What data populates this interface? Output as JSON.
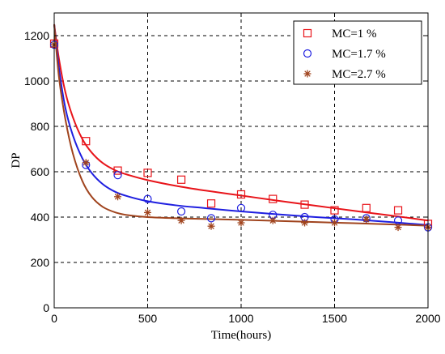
{
  "chart_data": {
    "type": "scatter",
    "xlabel": "Time(hours)",
    "ylabel": "DP",
    "xlim": [
      0,
      2000
    ],
    "ylim": [
      0,
      1300
    ],
    "xticks": [
      0,
      500,
      1000,
      1500,
      2000
    ],
    "yticks": [
      0,
      200,
      400,
      600,
      800,
      1000,
      1200
    ],
    "grid": true,
    "grid_style": "dashed",
    "legend_position": "top-right",
    "series": [
      {
        "name": "MC=1 %",
        "color": "#e8141a",
        "marker": "square",
        "points": [
          [
            0,
            1165
          ],
          [
            170,
            735
          ],
          [
            340,
            605
          ],
          [
            500,
            595
          ],
          [
            680,
            565
          ],
          [
            840,
            460
          ],
          [
            1000,
            500
          ],
          [
            1170,
            480
          ],
          [
            1340,
            455
          ],
          [
            1500,
            430
          ],
          [
            1670,
            440
          ],
          [
            1840,
            430
          ],
          [
            2000,
            370
          ]
        ],
        "fit": [
          [
            0,
            1250
          ],
          [
            25,
            1100
          ],
          [
            60,
            950
          ],
          [
            100,
            840
          ],
          [
            150,
            745
          ],
          [
            200,
            685
          ],
          [
            260,
            638
          ],
          [
            330,
            605
          ],
          [
            400,
            585
          ],
          [
            500,
            563
          ],
          [
            650,
            538
          ],
          [
            800,
            518
          ],
          [
            1000,
            495
          ],
          [
            1200,
            472
          ],
          [
            1400,
            450
          ],
          [
            1600,
            428
          ],
          [
            1800,
            407
          ],
          [
            2000,
            385
          ]
        ]
      },
      {
        "name": "MC=1.7 %",
        "color": "#1f1fe0",
        "marker": "circle",
        "points": [
          [
            0,
            1160
          ],
          [
            170,
            630
          ],
          [
            340,
            585
          ],
          [
            500,
            480
          ],
          [
            680,
            425
          ],
          [
            840,
            395
          ],
          [
            1000,
            440
          ],
          [
            1170,
            410
          ],
          [
            1340,
            400
          ],
          [
            1500,
            390
          ],
          [
            1670,
            395
          ],
          [
            1840,
            385
          ],
          [
            2000,
            355
          ]
        ],
        "fit": [
          [
            0,
            1250
          ],
          [
            25,
            1060
          ],
          [
            60,
            880
          ],
          [
            100,
            760
          ],
          [
            150,
            660
          ],
          [
            200,
            595
          ],
          [
            260,
            545
          ],
          [
            330,
            510
          ],
          [
            400,
            490
          ],
          [
            500,
            470
          ],
          [
            650,
            452
          ],
          [
            800,
            440
          ],
          [
            1000,
            425
          ],
          [
            1200,
            412
          ],
          [
            1400,
            400
          ],
          [
            1600,
            390
          ],
          [
            1800,
            378
          ],
          [
            2000,
            365
          ]
        ]
      },
      {
        "name": "MC=2.7 %",
        "color": "#a0441e",
        "marker": "star",
        "points": [
          [
            0,
            1160
          ],
          [
            170,
            640
          ],
          [
            340,
            490
          ],
          [
            500,
            420
          ],
          [
            680,
            385
          ],
          [
            840,
            360
          ],
          [
            1000,
            375
          ],
          [
            1170,
            385
          ],
          [
            1340,
            375
          ],
          [
            1500,
            375
          ],
          [
            1670,
            390
          ],
          [
            1840,
            355
          ],
          [
            2000,
            355
          ]
        ],
        "fit": [
          [
            0,
            1250
          ],
          [
            25,
            1020
          ],
          [
            60,
            830
          ],
          [
            100,
            680
          ],
          [
            150,
            560
          ],
          [
            200,
            490
          ],
          [
            260,
            445
          ],
          [
            330,
            420
          ],
          [
            400,
            408
          ],
          [
            500,
            400
          ],
          [
            650,
            395
          ],
          [
            800,
            392
          ],
          [
            1000,
            388
          ],
          [
            1200,
            383
          ],
          [
            1400,
            378
          ],
          [
            1600,
            373
          ],
          [
            1800,
            368
          ],
          [
            2000,
            362
          ]
        ]
      }
    ]
  }
}
